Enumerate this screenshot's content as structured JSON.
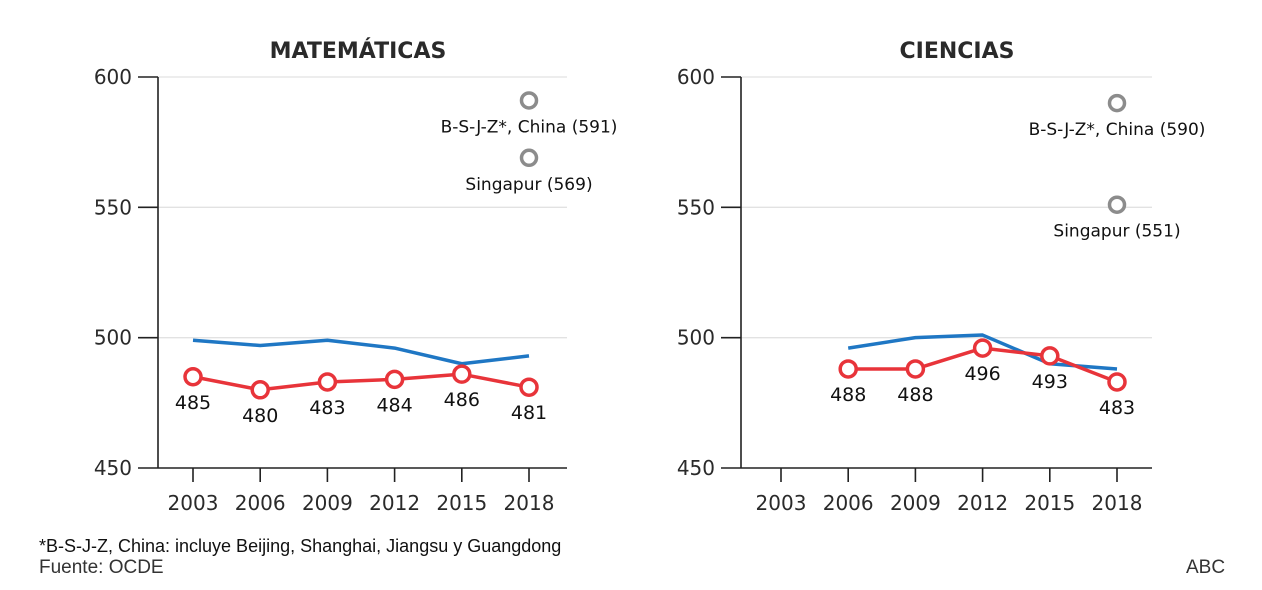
{
  "chart_data": [
    {
      "type": "line",
      "title": "MATEMÁTICAS",
      "x": [
        "2003",
        "2006",
        "2009",
        "2012",
        "2015",
        "2018"
      ],
      "ylim": [
        450,
        600
      ],
      "yticks": [
        450,
        500,
        550,
        600
      ],
      "grid": true,
      "series": [
        {
          "color": "#1f77c4",
          "values": [
            499,
            497,
            499,
            496,
            490,
            493
          ]
        },
        {
          "color": "#e8343a",
          "markers": true,
          "values": [
            485,
            480,
            483,
            484,
            486,
            481
          ],
          "labels": [
            "485",
            "480",
            "483",
            "484",
            "486",
            "481"
          ]
        }
      ],
      "annotations": [
        {
          "label": "B-S-J-Z*, China (591)",
          "x": "2018",
          "y": 591,
          "color": "#8c8c8c"
        },
        {
          "label": "Singapur (569)",
          "x": "2018",
          "y": 569,
          "color": "#8c8c8c"
        }
      ]
    },
    {
      "type": "line",
      "title": "CIENCIAS",
      "x": [
        "2003",
        "2006",
        "2009",
        "2012",
        "2015",
        "2018"
      ],
      "ylim": [
        450,
        600
      ],
      "yticks": [
        450,
        500,
        550,
        600
      ],
      "grid": true,
      "series": [
        {
          "color": "#1f77c4",
          "values": [
            null,
            496,
            500,
            501,
            490,
            488
          ]
        },
        {
          "color": "#e8343a",
          "markers": true,
          "values": [
            null,
            488,
            488,
            496,
            493,
            483
          ],
          "labels": [
            null,
            "488",
            "488",
            "496",
            "493",
            "483"
          ]
        }
      ],
      "annotations": [
        {
          "label": "B-S-J-Z*, China (590)",
          "x": "2018",
          "y": 590,
          "color": "#8c8c8c"
        },
        {
          "label": "Singapur (551)",
          "x": "2018",
          "y": 551,
          "color": "#8c8c8c"
        }
      ]
    }
  ],
  "footer": {
    "note": "*B-S-J-Z, China: incluye Beijing, Shanghai, Jiangsu y Guangdong",
    "source": "Fuente: OCDE",
    "credit": "ABC"
  }
}
